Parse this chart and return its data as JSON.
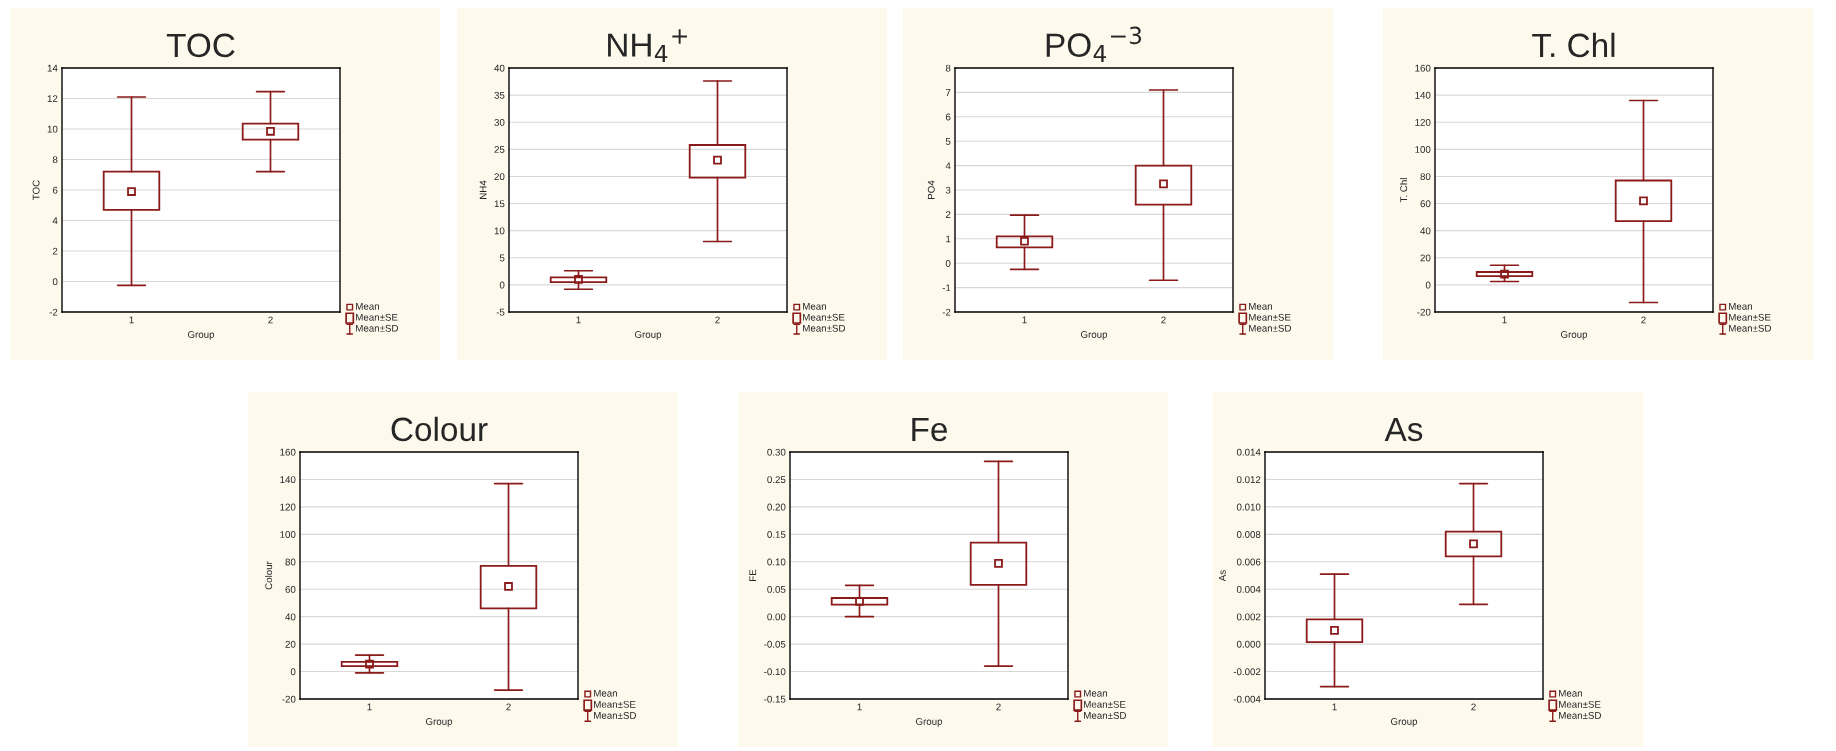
{
  "chart_data": [
    {
      "type": "box",
      "title": "TOC",
      "xlabel": "Group",
      "ylabel": "TOC",
      "categories": [
        "1",
        "2"
      ],
      "marker": "square",
      "grid": "y",
      "annotations": [
        "Mean",
        "Mean±SE",
        "Mean±SD"
      ],
      "ylim": [
        -2,
        14
      ],
      "yticks": [
        -2,
        0,
        2,
        4,
        6,
        8,
        10,
        12,
        14
      ],
      "series": [
        {
          "color": "#8b1a1a",
          "boxes": [
            {
              "low": -0.25,
              "q1": 4.7,
              "median": 5.9,
              "q3": 7.2,
              "high": 12.1
            },
            {
              "low": 7.2,
              "q1": 9.3,
              "median": 9.85,
              "q3": 10.35,
              "high": 12.45
            }
          ]
        }
      ]
    },
    {
      "type": "box",
      "title": "NH$_{4}$$^{+}$",
      "xlabel": "Group",
      "ylabel": "NH4",
      "categories": [
        "1",
        "2"
      ],
      "marker": "square",
      "grid": "y",
      "annotations": [
        "Mean",
        "Mean±SE",
        "Mean±SD"
      ],
      "ylim": [
        -5,
        40
      ],
      "yticks": [
        -5,
        0,
        5,
        10,
        15,
        20,
        25,
        30,
        35,
        40
      ],
      "series": [
        {
          "color": "#8b1a1a",
          "boxes": [
            {
              "low": -0.8,
              "q1": 0.5,
              "median": 1.0,
              "q3": 1.4,
              "high": 2.6
            },
            {
              "low": 8,
              "q1": 19.8,
              "median": 23,
              "q3": 25.8,
              "high": 37.6
            }
          ]
        }
      ]
    },
    {
      "type": "box",
      "title": "PO$_{4}$$^{−3}$",
      "xlabel": "Group",
      "ylabel": "PO4",
      "categories": [
        "1",
        "2"
      ],
      "marker": "square",
      "grid": "y",
      "annotations": [
        "Mean",
        "Mean±SE",
        "Mean±SD"
      ],
      "ylim": [
        -2,
        8
      ],
      "yticks": [
        -2,
        -1,
        0,
        1,
        2,
        3,
        4,
        5,
        6,
        7,
        8
      ],
      "series": [
        {
          "color": "#8b1a1a",
          "boxes": [
            {
              "low": -0.25,
              "q1": 0.65,
              "median": 0.9,
              "q3": 1.1,
              "high": 1.97
            },
            {
              "low": -0.7,
              "q1": 2.4,
              "median": 3.25,
              "q3": 4.0,
              "high": 7.1
            }
          ]
        }
      ]
    },
    {
      "type": "box",
      "title": "T. Chl",
      "xlabel": "Group",
      "ylabel": "T. Chl",
      "categories": [
        "1",
        "2"
      ],
      "marker": "square",
      "grid": "y",
      "annotations": [
        "Mean",
        "Mean±SE",
        "Mean±SD"
      ],
      "ylim": [
        -20,
        160
      ],
      "yticks": [
        -20,
        0,
        20,
        40,
        60,
        80,
        100,
        120,
        140,
        160
      ],
      "series": [
        {
          "color": "#8b1a1a",
          "boxes": [
            {
              "low": 2.5,
              "q1": 6.5,
              "median": 8,
              "q3": 9.5,
              "high": 14.5
            },
            {
              "low": -13,
              "q1": 47,
              "median": 62,
              "q3": 77,
              "high": 136
            }
          ]
        }
      ]
    },
    {
      "type": "box",
      "title": "Colour",
      "xlabel": "Group",
      "ylabel": "Colour",
      "categories": [
        "1",
        "2"
      ],
      "marker": "square",
      "grid": "y",
      "annotations": [
        "Mean",
        "Mean±SE",
        "Mean±SD"
      ],
      "ylim": [
        -20,
        160
      ],
      "yticks": [
        -20,
        0,
        20,
        40,
        60,
        80,
        100,
        120,
        140,
        160
      ],
      "series": [
        {
          "color": "#8b1a1a",
          "boxes": [
            {
              "low": -1,
              "q1": 4,
              "median": 5.5,
              "q3": 7,
              "high": 12
            },
            {
              "low": -13.5,
              "q1": 46,
              "median": 62,
              "q3": 77,
              "high": 137
            }
          ]
        }
      ]
    },
    {
      "type": "box",
      "title": "Fe",
      "xlabel": "Group",
      "ylabel": "FE",
      "categories": [
        "1",
        "2"
      ],
      "marker": "square",
      "grid": "y",
      "annotations": [
        "Mean",
        "Mean±SE",
        "Mean±SD"
      ],
      "ylim": [
        -0.15,
        0.3
      ],
      "yticks": [
        {
          "value": -0.15,
          "label": "-0.15"
        },
        {
          "value": -0.1,
          "label": "-0.10"
        },
        {
          "value": -0.05,
          "label": "-0.05"
        },
        {
          "value": 0,
          "label": "0.00"
        },
        {
          "value": 0.05,
          "label": "0.05"
        },
        {
          "value": 0.1,
          "label": "0.10"
        },
        {
          "value": 0.15,
          "label": "0.15"
        },
        {
          "value": 0.2,
          "label": "0.20"
        },
        {
          "value": 0.25,
          "label": "0.25"
        },
        {
          "value": 0.3,
          "label": "0.30"
        }
      ],
      "series": [
        {
          "color": "#8b1a1a",
          "boxes": [
            {
              "low": 0.0,
              "q1": 0.022,
              "median": 0.028,
              "q3": 0.034,
              "high": 0.057
            },
            {
              "low": -0.09,
              "q1": 0.058,
              "median": 0.097,
              "q3": 0.135,
              "high": 0.283
            }
          ]
        }
      ]
    },
    {
      "type": "box",
      "title": "As",
      "xlabel": "Group",
      "ylabel": "As",
      "categories": [
        "1",
        "2"
      ],
      "marker": "square",
      "grid": "y",
      "annotations": [
        "Mean",
        "Mean±SE",
        "Mean±SD"
      ],
      "ylim": [
        -0.004,
        0.014
      ],
      "yticks": [
        {
          "value": -0.004,
          "label": "-0.004"
        },
        {
          "value": -0.002,
          "label": "-0.002"
        },
        {
          "value": 0,
          "label": "0.000"
        },
        {
          "value": 0.002,
          "label": "0.002"
        },
        {
          "value": 0.004,
          "label": "0.004"
        },
        {
          "value": 0.006,
          "label": "0.006"
        },
        {
          "value": 0.008,
          "label": "0.008"
        },
        {
          "value": 0.01,
          "label": "0.010"
        },
        {
          "value": 0.012,
          "label": "0.012"
        },
        {
          "value": 0.014,
          "label": "0.014"
        }
      ],
      "series": [
        {
          "color": "#8b1a1a",
          "boxes": [
            {
              "low": -0.0031,
              "q1": 0.00015,
              "median": 0.001,
              "q3": 0.0018,
              "high": 0.0051
            },
            {
              "low": 0.0029,
              "q1": 0.0064,
              "median": 0.0073,
              "q3": 0.0082,
              "high": 0.0117
            }
          ]
        }
      ]
    }
  ]
}
